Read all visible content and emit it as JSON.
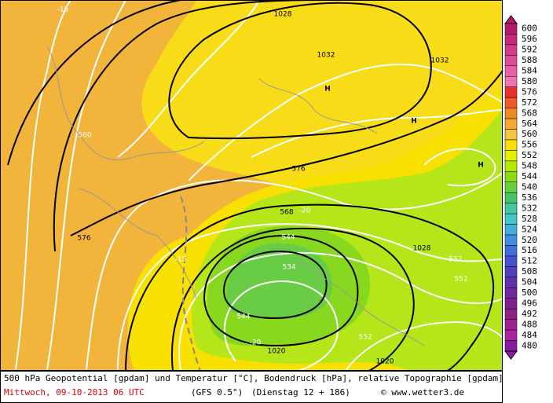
{
  "legend": {
    "levels": [
      600,
      596,
      592,
      588,
      584,
      580,
      576,
      572,
      568,
      564,
      560,
      556,
      552,
      548,
      544,
      540,
      536,
      532,
      528,
      524,
      520,
      516,
      512,
      508,
      504,
      500,
      496,
      492,
      488,
      484,
      480
    ],
    "colors": [
      "#b8186c",
      "#c8287c",
      "#d43a8a",
      "#e04c98",
      "#e860a8",
      "#ee74b4",
      "#e8302c",
      "#f05a24",
      "#f08a20",
      "#f4a830",
      "#f8c43c",
      "#f8e000",
      "#e4f000",
      "#b4e800",
      "#88dc10",
      "#64d040",
      "#48c468",
      "#40c8a0",
      "#40c8c8",
      "#40b0e0",
      "#4090e0",
      "#4070e0",
      "#4454d0",
      "#5040c0",
      "#6030b0",
      "#7028a0",
      "#802090",
      "#902084",
      "#a02094",
      "#b020a4",
      "#8a1aa0"
    ]
  },
  "map_labels": [
    "-15",
    "1028",
    "1032",
    "1032",
    "H",
    "H",
    "H",
    "560",
    "576",
    "576",
    "568",
    "-20",
    "544",
    "534",
    "-15",
    "1028",
    "552",
    "552",
    "544",
    "-20",
    "1020",
    "552",
    "1020"
  ],
  "footer": {
    "line1": "500 hPa Geopotential [gpdam] und Temperatur [°C], Bodendruck [hPa], relative Topographie [gpdam]",
    "date": "Mittwoch, 09-10-2013  06 UTC",
    "model": "(GFS 0.5°)",
    "run": "(Dienstag 12 + 186)",
    "credit": "© www.wetter3.de"
  }
}
